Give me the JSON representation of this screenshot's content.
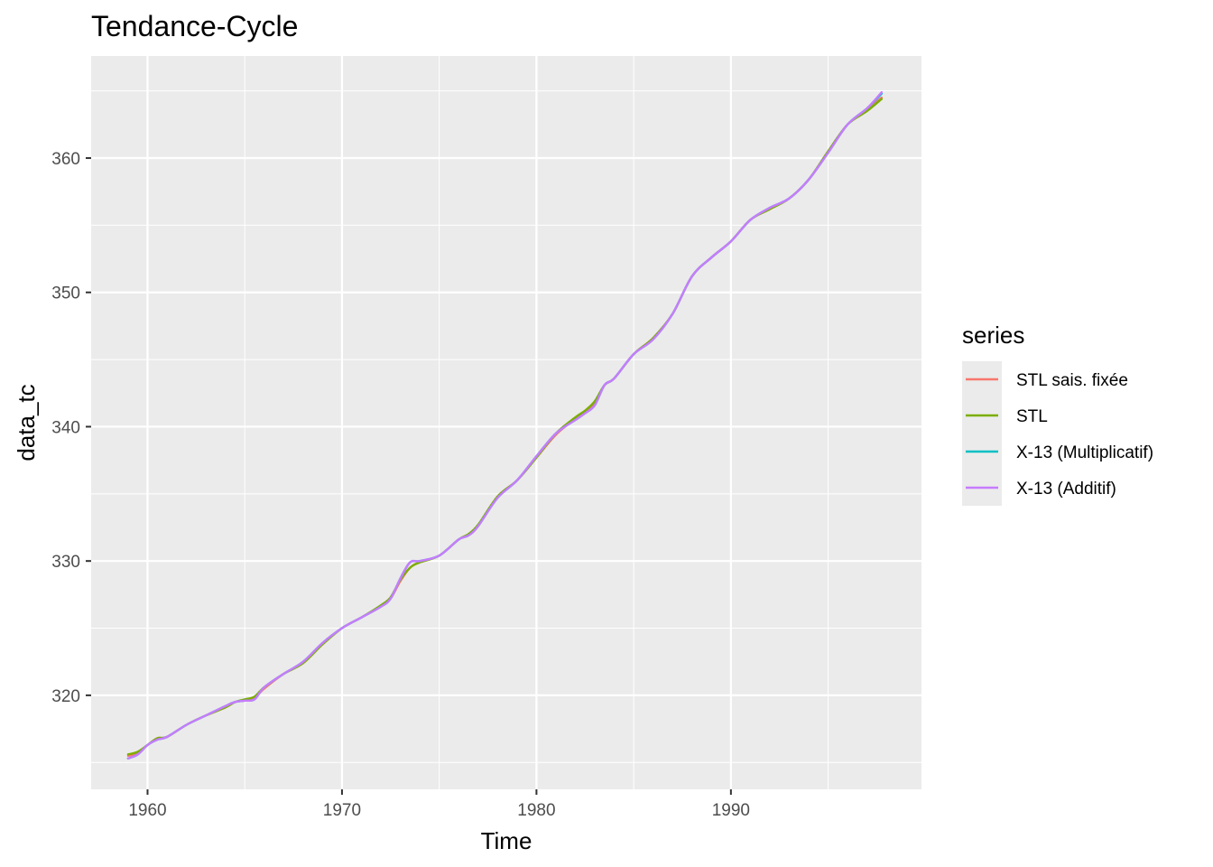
{
  "chart_data": {
    "type": "line",
    "title": "Tendance-Cycle",
    "xlabel": "Time",
    "ylabel": "data_tc",
    "xlim": [
      1957.1,
      1999.8
    ],
    "ylim": [
      313.0,
      367.6
    ],
    "x_ticks": [
      1960,
      1970,
      1980,
      1990
    ],
    "y_ticks": [
      320,
      330,
      340,
      350,
      360
    ],
    "x_tick_labels": [
      "1960",
      "1970",
      "1980",
      "1990"
    ],
    "y_tick_labels": [
      "320",
      "330",
      "340",
      "350",
      "360"
    ],
    "grid": true,
    "legend": {
      "title": "series",
      "position": "right",
      "entries": [
        {
          "label": "STL sais. fixée",
          "color": "#F8766D"
        },
        {
          "label": "STL",
          "color": "#7CAE00"
        },
        {
          "label": "X-13 (Multiplicatif)",
          "color": "#00BFC4"
        },
        {
          "label": "X-13 (Additif)",
          "color": "#C77CFF"
        }
      ]
    },
    "x": [
      1959.0,
      1959.5,
      1960.0,
      1960.5,
      1961.0,
      1962.0,
      1963.0,
      1964.0,
      1964.5,
      1965.0,
      1965.5,
      1966.0,
      1967.0,
      1968.0,
      1969.0,
      1970.0,
      1971.0,
      1972.0,
      1972.5,
      1973.0,
      1973.5,
      1974.0,
      1975.0,
      1976.0,
      1976.5,
      1977.0,
      1978.0,
      1979.0,
      1980.0,
      1981.0,
      1982.0,
      1982.5,
      1983.0,
      1983.5,
      1984.0,
      1985.0,
      1986.0,
      1987.0,
      1988.0,
      1989.0,
      1990.0,
      1991.0,
      1992.0,
      1993.0,
      1994.0,
      1995.0,
      1996.0,
      1997.0,
      1997.75
    ],
    "series": [
      {
        "name": "STL sais. fixée",
        "color": "#F8766D",
        "values": [
          315.5,
          315.7,
          316.3,
          316.8,
          316.9,
          317.8,
          318.5,
          319.1,
          319.5,
          319.6,
          319.8,
          320.5,
          321.6,
          322.4,
          323.8,
          325.0,
          325.8,
          326.6,
          327.2,
          328.5,
          329.5,
          329.9,
          330.4,
          331.6,
          331.9,
          332.6,
          334.8,
          336.0,
          337.7,
          339.4,
          340.6,
          341.1,
          341.8,
          343.1,
          343.6,
          345.4,
          346.6,
          348.4,
          351.2,
          352.6,
          353.8,
          355.4,
          356.2,
          357.0,
          358.4,
          360.5,
          362.5,
          363.6,
          364.5
        ]
      },
      {
        "name": "STL",
        "color": "#7CAE00",
        "values": [
          315.6,
          315.8,
          316.3,
          316.8,
          316.9,
          317.8,
          318.5,
          319.1,
          319.5,
          319.7,
          319.9,
          320.6,
          321.6,
          322.4,
          323.8,
          325.0,
          325.8,
          326.7,
          327.3,
          328.6,
          329.5,
          329.9,
          330.4,
          331.6,
          332.0,
          332.7,
          334.8,
          336.0,
          337.7,
          339.5,
          340.7,
          341.2,
          341.9,
          343.1,
          343.6,
          345.4,
          346.6,
          348.4,
          351.2,
          352.6,
          353.8,
          355.4,
          356.2,
          357.0,
          358.4,
          360.5,
          362.5,
          363.5,
          364.4
        ]
      },
      {
        "name": "X-13 (Multiplicatif)",
        "color": "#00BFC4",
        "values": [
          315.3,
          315.6,
          316.3,
          316.7,
          316.9,
          317.8,
          318.5,
          319.2,
          319.5,
          319.6,
          319.7,
          320.6,
          321.6,
          322.5,
          323.9,
          325.0,
          325.8,
          326.6,
          327.2,
          328.7,
          329.9,
          330.0,
          330.4,
          331.6,
          331.9,
          332.6,
          334.7,
          336.0,
          337.8,
          339.5,
          340.5,
          341.0,
          341.6,
          343.1,
          343.6,
          345.4,
          346.5,
          348.4,
          351.2,
          352.6,
          353.8,
          355.4,
          356.3,
          357.0,
          358.4,
          360.4,
          362.5,
          363.7,
          364.8
        ]
      },
      {
        "name": "X-13 (Additif)",
        "color": "#C77CFF",
        "values": [
          315.3,
          315.6,
          316.3,
          316.7,
          316.9,
          317.8,
          318.5,
          319.2,
          319.5,
          319.6,
          319.7,
          320.6,
          321.6,
          322.5,
          323.9,
          325.0,
          325.8,
          326.6,
          327.2,
          328.7,
          329.9,
          330.0,
          330.4,
          331.6,
          331.9,
          332.6,
          334.7,
          336.0,
          337.8,
          339.5,
          340.5,
          341.0,
          341.6,
          343.1,
          343.6,
          345.4,
          346.5,
          348.4,
          351.2,
          352.6,
          353.8,
          355.4,
          356.3,
          357.0,
          358.4,
          360.4,
          362.5,
          363.7,
          364.9
        ]
      }
    ]
  }
}
